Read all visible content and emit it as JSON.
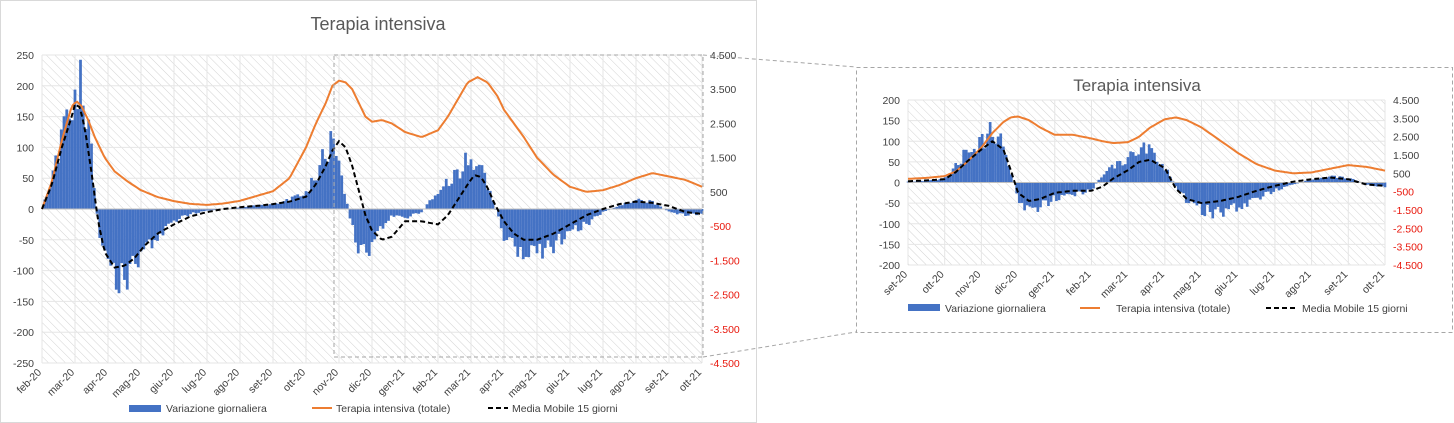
{
  "colors": {
    "bars": "#4472c4",
    "total_line": "#ed7d31",
    "moving_average": "#000000",
    "left_axis_text": "#404040",
    "right_axis_text": "#e8170c",
    "border": "#d9d9d9"
  },
  "legend": {
    "daily": "Variazione giornaliera",
    "total": "Terapia intensiva (totale)",
    "ma": "Media Mobile 15 giorni"
  },
  "chart_data": [
    {
      "type": "bar",
      "title": "Terapia intensiva",
      "categories": [
        "feb-20",
        "mar-20",
        "apr-20",
        "mag-20",
        "giu-20",
        "lug-20",
        "ago-20",
        "set-20",
        "ott-20",
        "nov-20",
        "dic-20",
        "gen-21",
        "feb-21",
        "mar-21",
        "apr-21",
        "mag-21",
        "giu-21",
        "lug-21",
        "ago-21",
        "set-21",
        "ott-21"
      ],
      "ylim": [
        -250,
        250
      ],
      "yticks": [
        250,
        200,
        150,
        100,
        50,
        0,
        -50,
        -100,
        -150,
        -200,
        -250
      ],
      "ytick_labels": [
        "250",
        "200",
        "150",
        "100",
        "50",
        "0",
        "-50",
        "-100",
        "-150",
        "-200",
        "-250"
      ],
      "y2lim": [
        -4500,
        4500
      ],
      "y2ticks": [
        4500,
        3500,
        2500,
        1500,
        500,
        -500,
        -1500,
        -2500,
        -3500,
        -4500
      ],
      "y2tick_labels": [
        "4.500",
        "3.500",
        "2.500",
        "1.500",
        "500",
        "-500",
        "-1.500",
        "-2.500",
        "-3.500",
        "-4.500"
      ],
      "grid": true,
      "legend_position": "bottom",
      "series": [
        {
          "name": "Variazione giornaliera",
          "type": "bar",
          "axis": "left",
          "x": [
            0,
            0.5,
            0.8,
            1,
            1.15,
            1.4,
            1.7,
            2,
            2.3,
            2.6,
            3,
            3.5,
            4,
            4.5,
            5,
            6,
            7,
            7.5,
            8,
            8.3,
            8.6,
            8.8,
            9,
            9.2,
            9.5,
            9.8,
            10,
            10.3,
            10.6,
            11,
            11.5,
            12,
            12.3,
            12.6,
            12.9,
            13.2,
            13.5,
            13.8,
            14,
            14.5,
            15,
            15.5,
            16,
            16.5,
            17,
            17.5,
            18,
            18.5,
            19,
            19.5,
            20,
            20.3
          ],
          "values": [
            0,
            90,
            170,
            200,
            215,
            150,
            -30,
            -95,
            -120,
            -110,
            -75,
            -45,
            -20,
            -8,
            -3,
            3,
            8,
            15,
            30,
            55,
            95,
            115,
            90,
            20,
            -55,
            -75,
            -60,
            -30,
            -10,
            -15,
            -5,
            30,
            45,
            60,
            85,
            80,
            40,
            -10,
            -45,
            -70,
            -75,
            -60,
            -40,
            -25,
            -5,
            5,
            15,
            12,
            -5,
            -10,
            -8,
            0
          ]
        },
        {
          "name": "Terapia intensiva (totale)",
          "type": "line",
          "axis": "right",
          "x": [
            0,
            0.3,
            0.6,
            0.9,
            1.05,
            1.2,
            1.4,
            1.6,
            1.9,
            2.2,
            2.6,
            3,
            3.5,
            4,
            4.5,
            5,
            5.5,
            6,
            6.5,
            7,
            7.5,
            8,
            8.3,
            8.6,
            8.8,
            9,
            9.2,
            9.4,
            9.6,
            9.8,
            10,
            10.3,
            10.6,
            11,
            11.5,
            12,
            12.3,
            12.6,
            12.9,
            13.2,
            13.5,
            13.8,
            14,
            14.3,
            14.6,
            15,
            15.5,
            16,
            16.5,
            17,
            17.5,
            18,
            18.5,
            19,
            19.5,
            20,
            20.3
          ],
          "values": [
            0,
            800,
            2000,
            3000,
            3150,
            3000,
            2600,
            2100,
            1500,
            1100,
            800,
            550,
            350,
            230,
            150,
            120,
            160,
            240,
            380,
            520,
            900,
            1800,
            2500,
            3100,
            3600,
            3750,
            3700,
            3500,
            3100,
            2700,
            2550,
            2600,
            2500,
            2250,
            2100,
            2300,
            2700,
            3200,
            3700,
            3850,
            3700,
            3300,
            2900,
            2500,
            2100,
            1500,
            1000,
            650,
            500,
            550,
            700,
            900,
            1050,
            950,
            850,
            650,
            600
          ]
        },
        {
          "name": "Media Mobile 15 giorni",
          "type": "line",
          "axis": "left",
          "x": [
            0,
            0.3,
            0.6,
            0.9,
            1.0,
            1.15,
            1.3,
            1.5,
            1.7,
            1.9,
            2.2,
            2.5,
            2.8,
            3.1,
            3.5,
            4,
            4.5,
            5,
            5.5,
            6,
            6.5,
            7,
            7.5,
            8,
            8.3,
            8.6,
            8.8,
            9,
            9.2,
            9.4,
            9.6,
            9.8,
            10,
            10.3,
            10.6,
            11,
            11.5,
            12,
            12.3,
            12.6,
            12.9,
            13.1,
            13.3,
            13.5,
            13.7,
            14,
            14.3,
            14.6,
            15,
            15.5,
            16,
            16.5,
            17,
            17.5,
            18,
            18.5,
            19,
            19.5,
            20,
            20.3
          ],
          "values": [
            0,
            40,
            100,
            150,
            170,
            165,
            130,
            60,
            -20,
            -70,
            -95,
            -92,
            -80,
            -60,
            -40,
            -25,
            -12,
            -5,
            0,
            3,
            5,
            8,
            12,
            20,
            40,
            70,
            95,
            110,
            100,
            70,
            30,
            -10,
            -35,
            -50,
            -45,
            -20,
            -20,
            -25,
            -10,
            15,
            40,
            55,
            52,
            35,
            10,
            -20,
            -40,
            -50,
            -50,
            -40,
            -25,
            -10,
            0,
            8,
            12,
            10,
            5,
            -5,
            -8,
            0
          ]
        }
      ]
    },
    {
      "type": "bar",
      "title": "Terapia intensiva",
      "categories": [
        "set-20",
        "ott-20",
        "nov-20",
        "dic-20",
        "gen-21",
        "feb-21",
        "mar-21",
        "apr-21",
        "mag-21",
        "giu-21",
        "lug-21",
        "ago-21",
        "set-21",
        "ott-21"
      ],
      "ylim": [
        -200,
        200
      ],
      "yticks": [
        200,
        150,
        100,
        50,
        0,
        -50,
        -100,
        -150,
        -200
      ],
      "ytick_labels": [
        "200",
        "150",
        "100",
        "50",
        "0",
        "-50",
        "-100",
        "-150",
        "-200"
      ],
      "y2lim": [
        -4500,
        4500
      ],
      "y2ticks": [
        4500,
        3500,
        2500,
        1500,
        500,
        -500,
        -1500,
        -2500,
        -3500,
        -4500
      ],
      "y2tick_labels": [
        "4.500",
        "3.500",
        "2.500",
        "1.500",
        "500",
        "-500",
        "-1.500",
        "-2.500",
        "-3.500",
        "-4.500"
      ],
      "grid": true,
      "legend_position": "bottom",
      "series": [
        {
          "name": "Variazione giornaliera",
          "type": "bar",
          "axis": "left",
          "x": [
            0,
            0.5,
            1,
            1.3,
            1.6,
            2,
            2.3,
            2.6,
            2.8,
            3,
            3.3,
            3.6,
            4,
            4.5,
            5,
            5.3,
            5.6,
            6,
            6.3,
            6.6,
            7,
            7.3,
            7.6,
            8,
            8.5,
            9,
            9.5,
            10,
            10.5,
            11,
            11.5,
            12,
            12.5,
            13,
            13.3
          ],
          "values": [
            2,
            4,
            10,
            40,
            80,
            100,
            130,
            95,
            30,
            -40,
            -70,
            -60,
            -40,
            -30,
            -20,
            20,
            40,
            60,
            85,
            80,
            40,
            -10,
            -45,
            -70,
            -75,
            -60,
            -40,
            -20,
            -5,
            8,
            15,
            12,
            -5,
            -12,
            -5
          ]
        },
        {
          "name": "Terapia intensiva (totale)",
          "type": "line",
          "axis": "right",
          "x": [
            0,
            0.5,
            1,
            1.3,
            1.6,
            2,
            2.3,
            2.6,
            2.8,
            3,
            3.3,
            3.6,
            4,
            4.5,
            5,
            5.3,
            5.6,
            6,
            6.3,
            6.6,
            7,
            7.3,
            7.6,
            8,
            8.5,
            9,
            9.5,
            10,
            10.5,
            11,
            11.5,
            12,
            12.5,
            13,
            13.3
          ],
          "values": [
            200,
            250,
            350,
            600,
            1100,
            1900,
            2700,
            3300,
            3550,
            3600,
            3400,
            3000,
            2600,
            2600,
            2400,
            2250,
            2150,
            2200,
            2500,
            3000,
            3450,
            3550,
            3400,
            3000,
            2300,
            1600,
            1000,
            650,
            500,
            550,
            750,
            950,
            850,
            650,
            550
          ]
        },
        {
          "name": "Media Mobile 15 giorni",
          "type": "line",
          "axis": "left",
          "x": [
            0,
            0.5,
            1,
            1.3,
            1.6,
            2,
            2.3,
            2.6,
            2.8,
            3,
            3.3,
            3.6,
            4,
            4.5,
            5,
            5.3,
            5.6,
            6,
            6.3,
            6.6,
            7,
            7.3,
            7.6,
            8,
            8.5,
            9,
            9.5,
            10,
            10.5,
            11,
            11.5,
            12,
            12.5,
            13,
            13.3
          ],
          "values": [
            3,
            5,
            8,
            25,
            50,
            80,
            100,
            80,
            30,
            -25,
            -45,
            -40,
            -25,
            -20,
            -20,
            -10,
            10,
            30,
            50,
            55,
            35,
            -15,
            -40,
            -50,
            -45,
            -35,
            -20,
            -8,
            2,
            8,
            12,
            8,
            -5,
            -8,
            -2
          ]
        }
      ]
    }
  ]
}
